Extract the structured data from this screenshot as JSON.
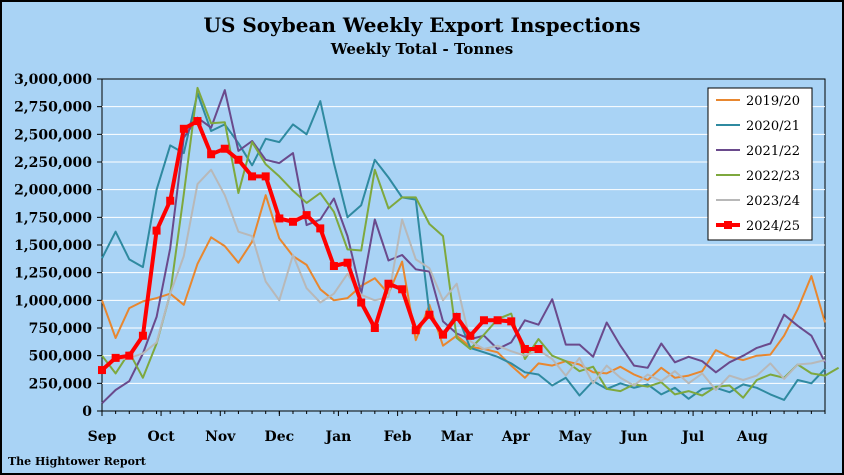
{
  "chart_data": {
    "type": "line",
    "title": "US Soybean Weekly Export Inspections",
    "subtitle": "Weekly Total - Tonnes",
    "source": "The Hightower Report",
    "xlabel": "",
    "ylabel": "",
    "ylim": [
      0,
      3000000
    ],
    "yticks": [
      "0",
      "250,000",
      "500,000",
      "750,000",
      "1,000,000",
      "1,250,000",
      "1,500,000",
      "1,750,000",
      "2,000,000",
      "2,250,000",
      "2,500,000",
      "2,750,000",
      "3,000,000"
    ],
    "months": [
      "Sep",
      "Oct",
      "Nov",
      "Dec",
      "Jan",
      "Feb",
      "Mar",
      "Apr",
      "May",
      "Jun",
      "Jul",
      "Aug"
    ],
    "grid": "horizontal",
    "legend_position": "top-right",
    "series": [
      {
        "name": "2019/20",
        "color": "#e8872f",
        "values": [
          1000000,
          660000,
          930000,
          990000,
          1020000,
          1060000,
          960000,
          1330000,
          1570000,
          1490000,
          1340000,
          1530000,
          1950000,
          1560000,
          1400000,
          1320000,
          1100000,
          1000000,
          1020000,
          1130000,
          1200000,
          1060000,
          1350000,
          640000,
          960000,
          590000,
          680000,
          580000,
          560000,
          530000,
          410000,
          300000,
          430000,
          410000,
          450000,
          420000,
          350000,
          340000,
          400000,
          330000,
          280000,
          390000,
          300000,
          320000,
          360000,
          550000,
          490000,
          460000,
          500000,
          510000,
          680000,
          920000,
          1220000,
          800000
        ]
      },
      {
        "name": "2020/21",
        "color": "#2f8aa0",
        "values": [
          1380000,
          1620000,
          1370000,
          1300000,
          2000000,
          2400000,
          2330000,
          2870000,
          2530000,
          2590000,
          2420000,
          2220000,
          2460000,
          2430000,
          2590000,
          2500000,
          2800000,
          2240000,
          1750000,
          1860000,
          2270000,
          2110000,
          1930000,
          1910000,
          880000,
          700000,
          880000,
          570000,
          530000,
          490000,
          430000,
          350000,
          330000,
          230000,
          300000,
          140000,
          270000,
          200000,
          250000,
          210000,
          240000,
          150000,
          210000,
          110000,
          200000,
          210000,
          170000,
          240000,
          210000,
          150000,
          100000,
          280000,
          250000,
          380000
        ]
      },
      {
        "name": "2021/22",
        "color": "#6a4a8c",
        "values": [
          70000,
          190000,
          270000,
          520000,
          850000,
          1470000,
          2470000,
          2650000,
          2560000,
          2900000,
          2350000,
          2440000,
          2270000,
          2240000,
          2330000,
          1680000,
          1730000,
          1920000,
          1580000,
          1060000,
          1730000,
          1360000,
          1410000,
          1280000,
          1260000,
          810000,
          700000,
          650000,
          680000,
          560000,
          620000,
          820000,
          780000,
          1010000,
          600000,
          600000,
          490000,
          800000,
          590000,
          410000,
          390000,
          610000,
          440000,
          490000,
          450000,
          350000,
          440000,
          500000,
          570000,
          610000,
          870000,
          770000,
          680000,
          440000
        ]
      },
      {
        "name": "2022/23",
        "color": "#7ea83e",
        "values": [
          500000,
          340000,
          530000,
          300000,
          610000,
          1060000,
          1960000,
          2920000,
          2600000,
          2610000,
          1970000,
          2430000,
          2230000,
          2120000,
          1990000,
          1880000,
          1970000,
          1800000,
          1460000,
          1450000,
          2180000,
          1830000,
          1930000,
          1930000,
          1690000,
          1580000,
          660000,
          560000,
          690000,
          830000,
          880000,
          470000,
          650000,
          500000,
          450000,
          360000,
          400000,
          200000,
          180000,
          240000,
          220000,
          260000,
          150000,
          180000,
          140000,
          220000,
          230000,
          120000,
          280000,
          330000,
          300000,
          420000,
          340000,
          320000,
          390000
        ]
      },
      {
        "name": "2023/24",
        "color": "#b8b8b8",
        "values": [
          390000,
          460000,
          480000,
          520000,
          620000,
          1060000,
          1400000,
          2050000,
          2180000,
          1950000,
          1620000,
          1580000,
          1170000,
          1000000,
          1410000,
          1110000,
          980000,
          1060000,
          1240000,
          1050000,
          1000000,
          1030000,
          1730000,
          1370000,
          1290000,
          1000000,
          1150000,
          630000,
          560000,
          590000,
          540000,
          500000,
          550000,
          470000,
          320000,
          480000,
          250000,
          410000,
          300000,
          230000,
          330000,
          270000,
          360000,
          250000,
          340000,
          190000,
          320000,
          280000,
          320000,
          430000,
          290000,
          420000,
          430000,
          460000
        ]
      },
      {
        "name": "2024/25",
        "color": "#ff0000",
        "values": [
          370000,
          480000,
          500000,
          680000,
          1630000,
          1900000,
          2550000,
          2620000,
          2320000,
          2370000,
          2270000,
          2120000,
          2120000,
          1740000,
          1710000,
          1770000,
          1650000,
          1310000,
          1340000,
          980000,
          750000,
          1150000,
          1100000,
          730000,
          870000,
          690000,
          850000,
          680000,
          820000,
          820000,
          810000,
          560000,
          560000
        ]
      }
    ]
  }
}
